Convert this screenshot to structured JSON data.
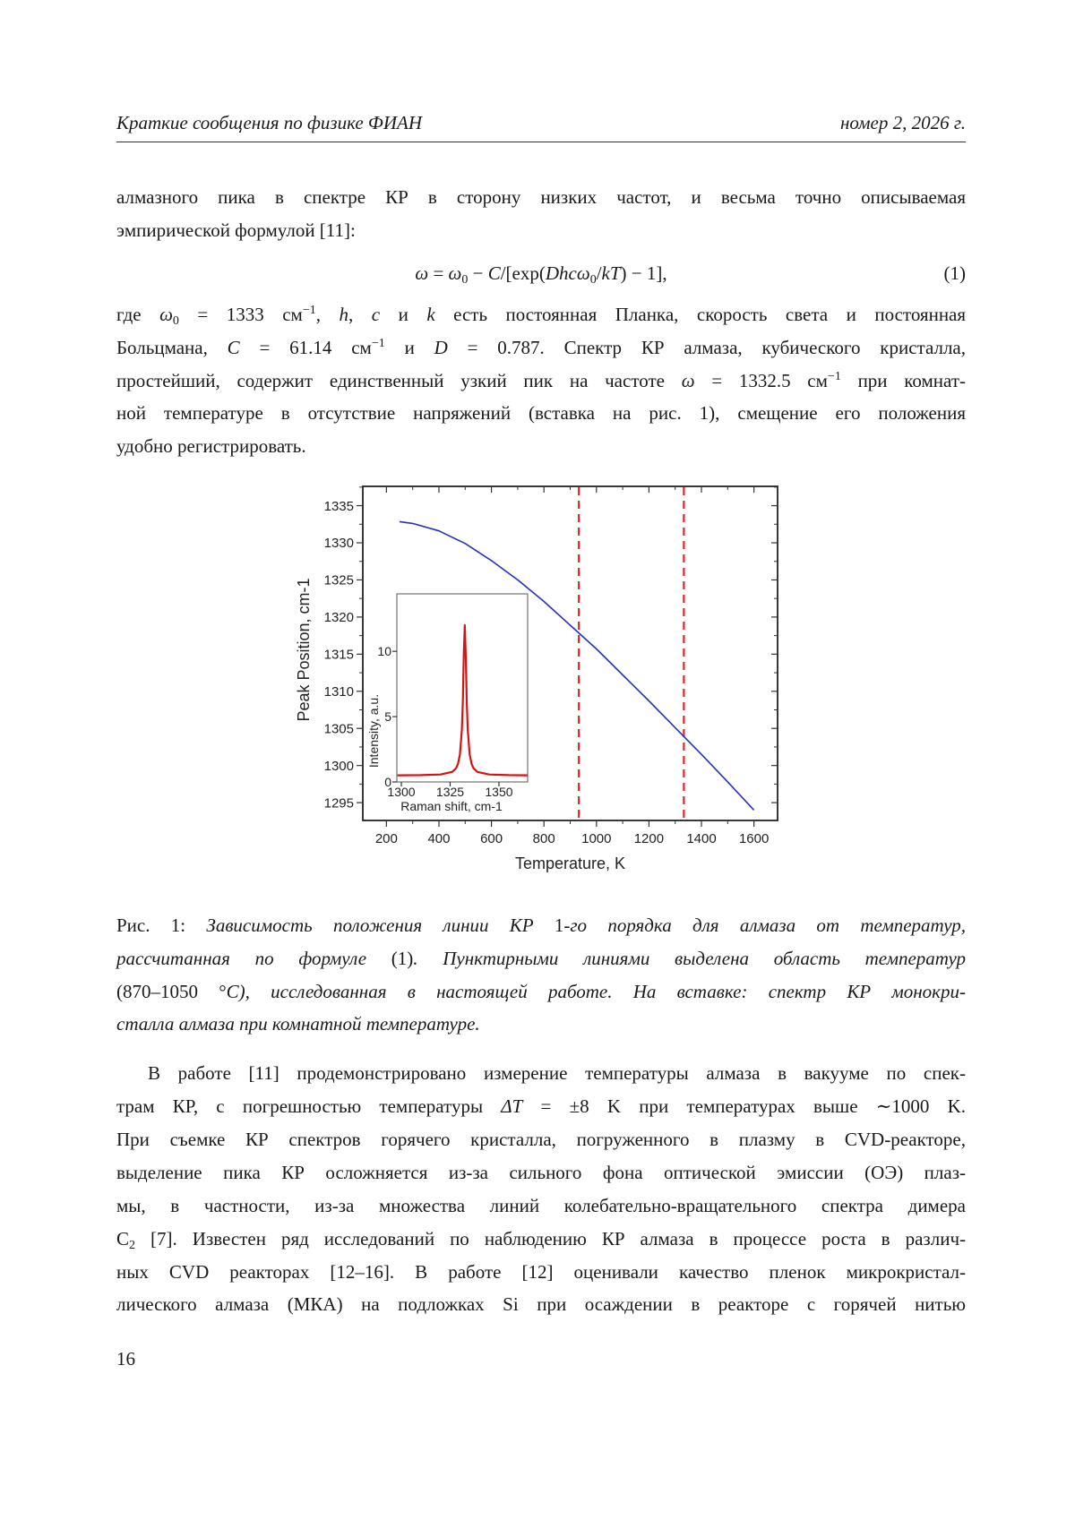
{
  "header": {
    "left": "Краткие сообщения по физике ФИАН",
    "right": "номер 2, 2026 г."
  },
  "paragraph1": {
    "lines": [
      [
        {
          "t": "алмазного пика в спектре КР в сторону низких частот, и весьма точно описываемая"
        }
      ],
      [
        {
          "t": "эмпирической формулой [11]:"
        }
      ]
    ]
  },
  "equation": {
    "segments": [
      {
        "t": "ω",
        "f": "i"
      },
      {
        "t": " = "
      },
      {
        "t": "ω",
        "f": "i"
      },
      {
        "t": "0",
        "f": "sub"
      },
      {
        "t": " − "
      },
      {
        "t": "C",
        "f": "i"
      },
      {
        "t": "/[exp("
      },
      {
        "t": "Dhcω",
        "f": "i"
      },
      {
        "t": "0",
        "f": "sub"
      },
      {
        "t": "/"
      },
      {
        "t": "kT",
        "f": "i"
      },
      {
        "t": ") − 1],"
      }
    ],
    "number": "(1)"
  },
  "paragraph1b": {
    "lines": [
      [
        {
          "t": "где "
        },
        {
          "t": "ω",
          "f": "i"
        },
        {
          "t": "0",
          "f": "sub"
        },
        {
          "t": " = 1333 см"
        },
        {
          "t": "−1",
          "f": "sup"
        },
        {
          "t": ", "
        },
        {
          "t": "h",
          "f": "i"
        },
        {
          "t": ", "
        },
        {
          "t": "c",
          "f": "i"
        },
        {
          "t": " и "
        },
        {
          "t": "k",
          "f": "i"
        },
        {
          "t": " есть постоянная Планка, скорость света и постоянная"
        }
      ],
      [
        {
          "t": "Больцмана, "
        },
        {
          "t": "C",
          "f": "i"
        },
        {
          "t": " = 61.14 см"
        },
        {
          "t": "−1",
          "f": "sup"
        },
        {
          "t": " и "
        },
        {
          "t": "D",
          "f": "i"
        },
        {
          "t": " = 0.787. Спектр КР алмаза, кубического кристалла,"
        }
      ],
      [
        {
          "t": "простейший, содержит единственный узкий пик на частоте "
        },
        {
          "t": "ω",
          "f": "i"
        },
        {
          "t": " = 1332.5 см"
        },
        {
          "t": "−1",
          "f": "sup"
        },
        {
          "t": " при комнат-"
        }
      ],
      [
        {
          "t": "ной температуре в отсутствие напряжений (вставка на рис. 1), смещение его положения"
        }
      ],
      [
        {
          "t": "удобно регистрировать."
        }
      ]
    ]
  },
  "caption": {
    "lines": [
      [
        {
          "t": "Рис. 1: "
        },
        {
          "t": "Зависимость положения линии КР ",
          "f": "i"
        },
        {
          "t": "1"
        },
        {
          "t": "-го порядка для алмаза от температур,",
          "f": "i"
        }
      ],
      [
        {
          "t": "рассчитанная по формуле ",
          "f": "i"
        },
        {
          "t": "(1)"
        },
        {
          "t": ". Пунктирными линиями выделена область температур",
          "f": "i"
        }
      ],
      [
        {
          "t": "(870–1050 °"
        },
        {
          "t": "C",
          "f": "i"
        },
        {
          "t": "), исследованная в настоящей работе. На вставке: спектр КР монокри-",
          "f": "i"
        }
      ],
      [
        {
          "t": "сталла алмаза при комнатной температуре.",
          "f": "i"
        }
      ]
    ]
  },
  "paragraph2": {
    "lines": [
      [
        {
          "t": "В работе [11] продемонстрировано измерение температуры алмаза в вакууме по спек-"
        }
      ],
      [
        {
          "t": "трам КР, с погрешностью температуры "
        },
        {
          "t": "ΔT",
          "f": "i"
        },
        {
          "t": " = ±8 K при температурах выше ∼1000 K."
        }
      ],
      [
        {
          "t": "При съемке КР спектров горячего кристалла, погруженного в плазму в CVD-реакторе,"
        }
      ],
      [
        {
          "t": "выделение пика КР осложняется из-за сильного фона оптической эмиссии (ОЭ) плаз-"
        }
      ],
      [
        {
          "t": "мы, в частности, из-за множества линий колебательно-вращательного спектра димера"
        }
      ],
      [
        {
          "t": "C"
        },
        {
          "t": "2",
          "f": "sub"
        },
        {
          "t": " [7]. Известен ряд исследований по наблюдению КР алмаза в процессе роста в различ-"
        }
      ],
      [
        {
          "t": "ных CVD реакторах [12–16]. В работе [12] оценивали качество пленок микрокристал-"
        }
      ],
      [
        {
          "t": "лического алмаза (МКА) на подложках Si при осаждении в реакторе с горячей нитью"
        }
      ]
    ]
  },
  "page_number": "16",
  "chart_data": [
    {
      "type": "line",
      "xlabel": "Temperature, K",
      "ylabel": "Peak Position, cm-1",
      "xlim": [
        110,
        1690
      ],
      "ylim": [
        1292.6,
        1337.6
      ],
      "xticks": [
        200,
        400,
        600,
        800,
        1000,
        1200,
        1400,
        1600
      ],
      "yticks": [
        1295,
        1300,
        1305,
        1310,
        1315,
        1320,
        1325,
        1330,
        1335
      ],
      "series": [
        {
          "color": "#2b2fbf",
          "x": [
            250,
            300,
            400,
            500,
            600,
            700,
            800,
            900,
            1000,
            1100,
            1200,
            1300,
            1400,
            1500,
            1600
          ],
          "y": [
            1332.85,
            1332.6,
            1331.6,
            1329.9,
            1327.6,
            1325.0,
            1322.1,
            1318.9,
            1315.7,
            1312.2,
            1308.7,
            1305.1,
            1301.5,
            1297.8,
            1294.0
          ]
        }
      ],
      "vlines": {
        "x": [
          933,
          1333
        ],
        "color": "#d42a2a",
        "style": "dashed"
      },
      "grid": false
    },
    {
      "type": "line",
      "role": "inset",
      "xlabel": "Raman shift, cm-1",
      "ylabel": "Intensity, a.u.",
      "xlim": [
        1297.7,
        1364.7
      ],
      "ylim": [
        0,
        14.4
      ],
      "xticks": [
        1300,
        1325,
        1350
      ],
      "yticks": [
        0,
        5,
        10
      ],
      "series": [
        {
          "color": "#d41414",
          "x": [
            1298,
            1310,
            1320,
            1326,
            1328,
            1329,
            1330,
            1331,
            1331.5,
            1332,
            1332.5,
            1333,
            1333.5,
            1334,
            1335,
            1336,
            1337,
            1339,
            1345,
            1355,
            1364.7
          ],
          "y": [
            0.51,
            0.52,
            0.57,
            0.77,
            1.04,
            1.37,
            2.09,
            4.04,
            6.25,
            9.7,
            12.0,
            9.7,
            6.25,
            4.04,
            2.09,
            1.37,
            1.04,
            0.77,
            0.57,
            0.52,
            0.51
          ]
        }
      ],
      "grid": false
    }
  ]
}
